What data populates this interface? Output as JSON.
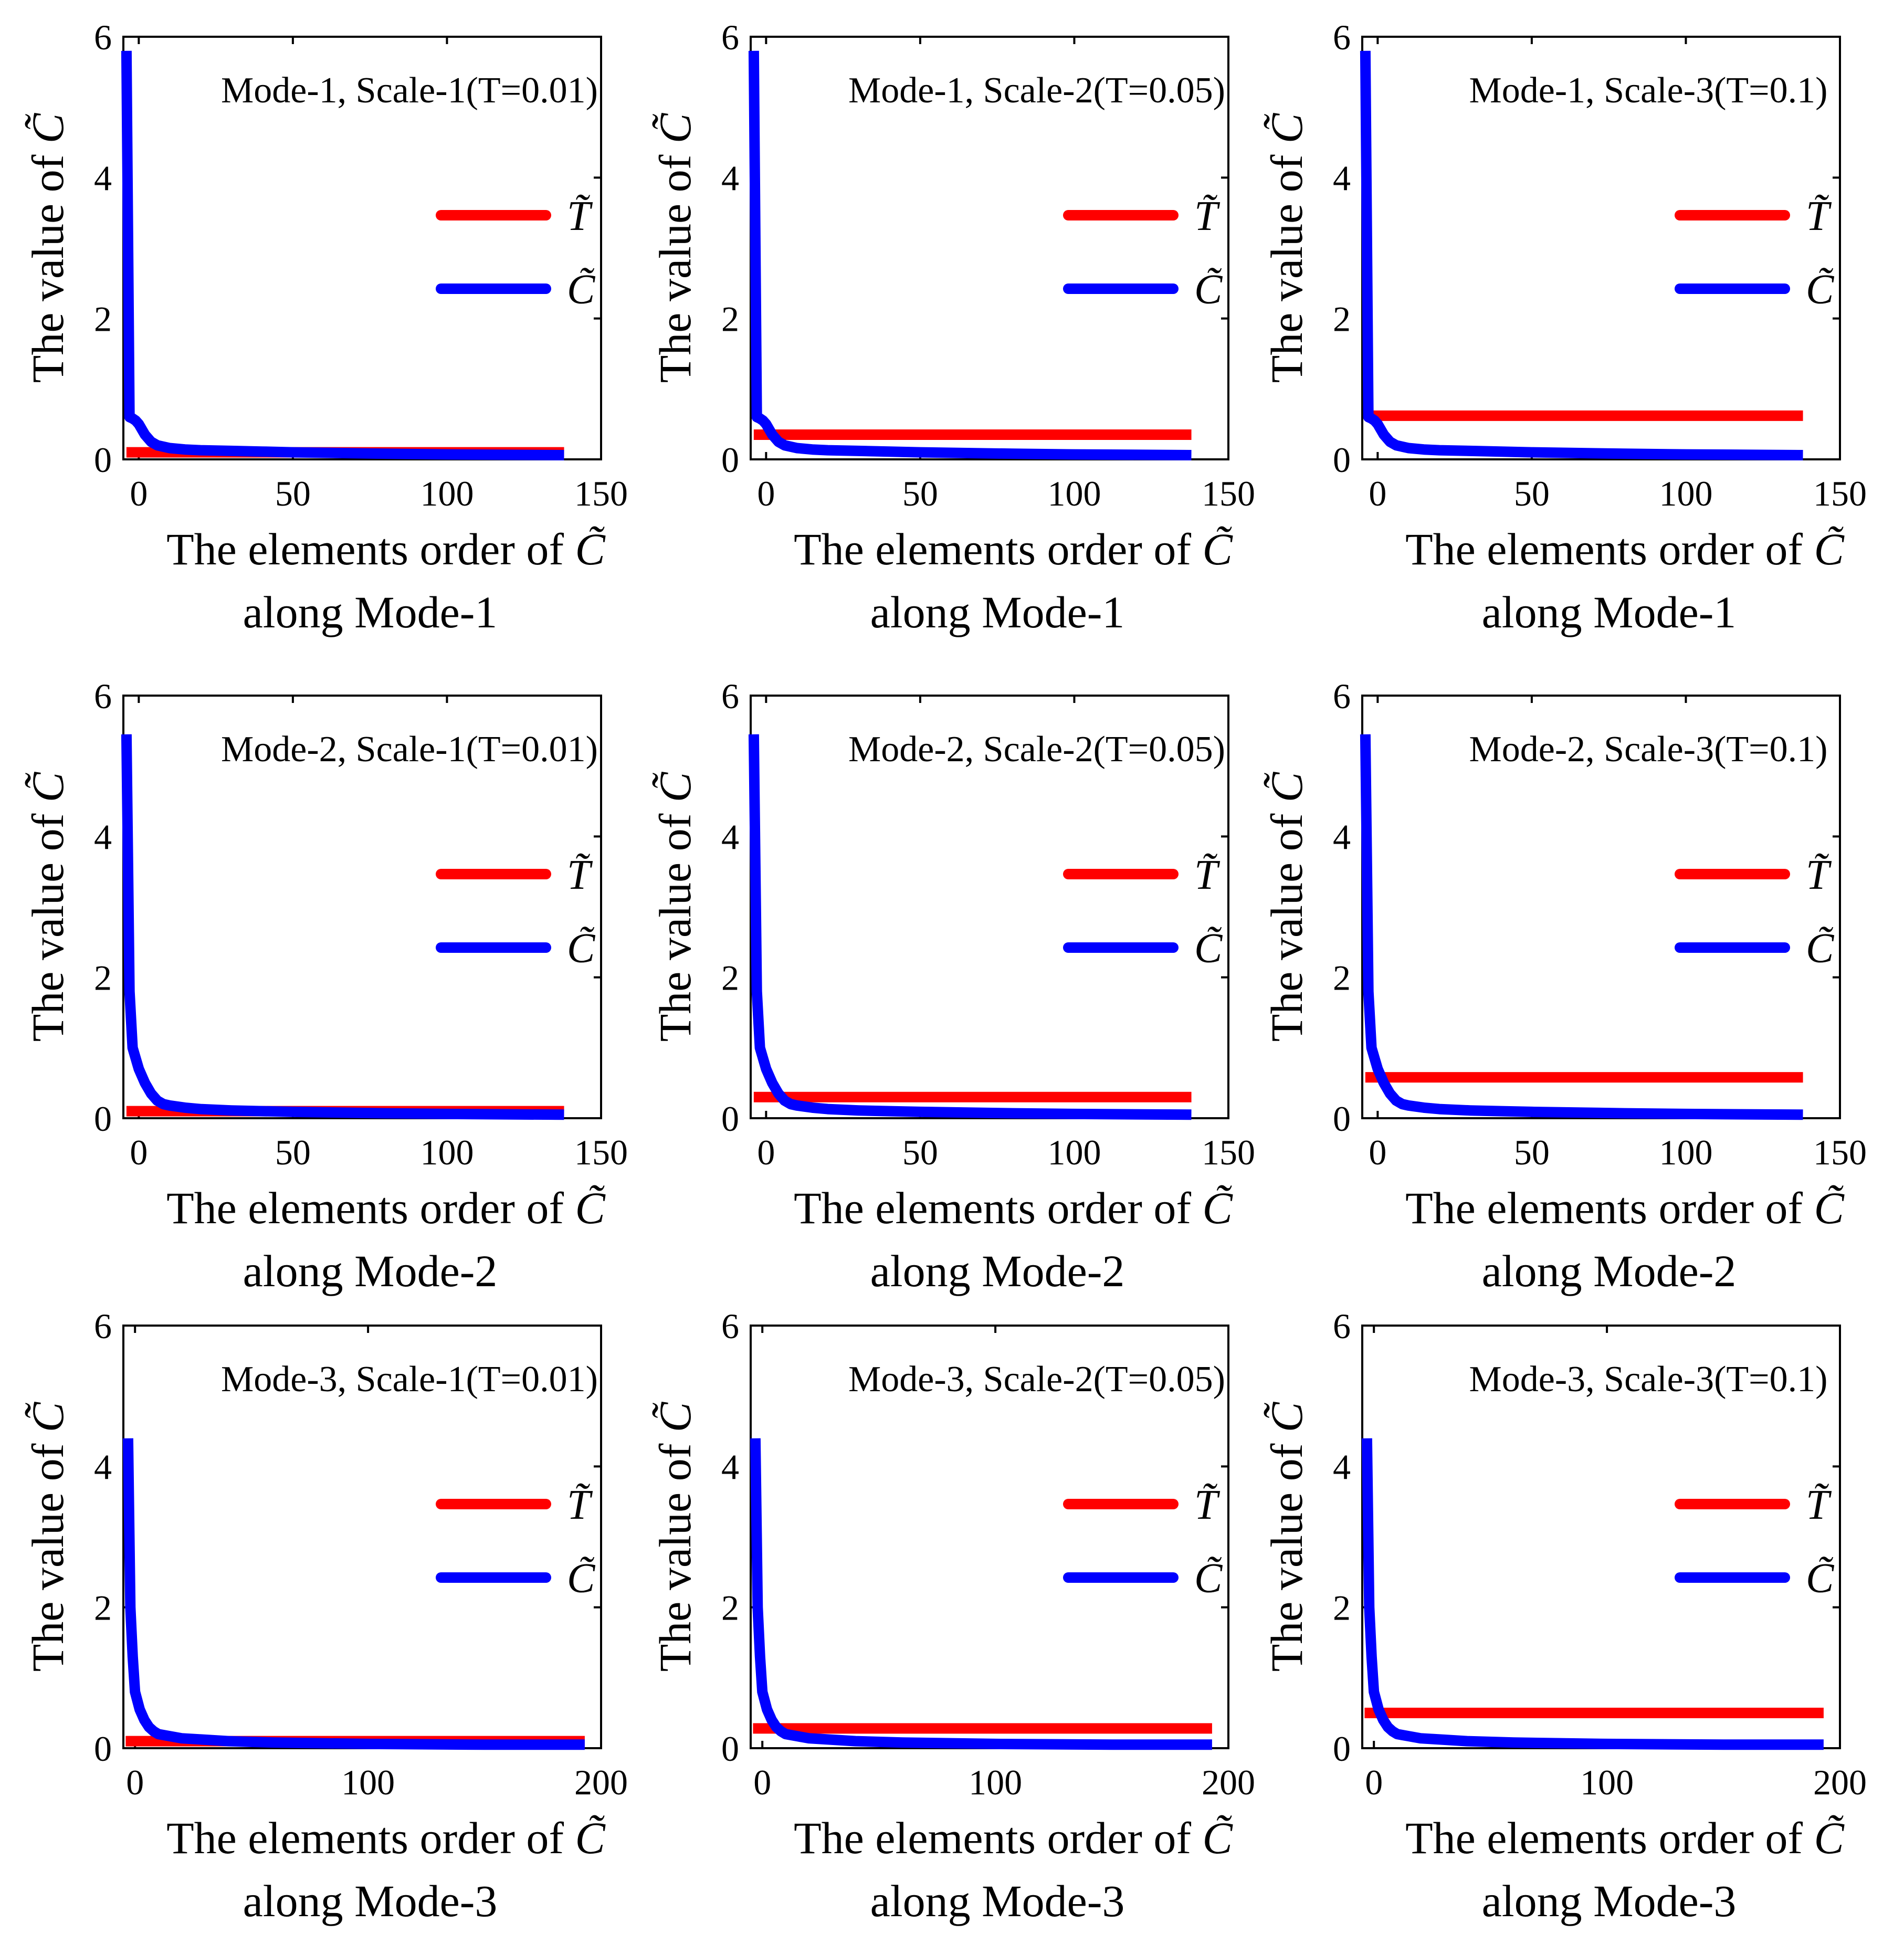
{
  "figure": {
    "series_colors": {
      "threshold": "#ff0000",
      "coefficients": "#0000ff"
    },
    "legend_symbols": {
      "threshold": "T̃",
      "coefficients": "C̃"
    },
    "ylabel": "The value of",
    "ylabel_symbol": "C̃",
    "xlabel_line1": "The elements order of",
    "xlabel_symbol": "C̃"
  },
  "chart_data": [
    {
      "type": "line",
      "title": "Mode-1, Scale-1(T=0.01)",
      "xlabel_line2": "along Mode-1",
      "xlim": [
        -5,
        150
      ],
      "ylim": [
        0,
        6
      ],
      "xticks": [
        0,
        50,
        100,
        150
      ],
      "yticks": [
        0,
        2,
        4,
        6
      ],
      "n_elements": 140,
      "peak": 5.8,
      "threshold": 0.1,
      "curve_x": [
        -4,
        -3,
        -2,
        -1,
        0,
        2,
        4,
        6,
        8,
        10,
        15,
        20,
        30,
        40,
        50,
        80,
        100,
        138
      ],
      "curve_y": [
        5.8,
        0.6,
        0.58,
        0.55,
        0.5,
        0.35,
        0.25,
        0.2,
        0.18,
        0.16,
        0.14,
        0.13,
        0.12,
        0.11,
        0.1,
        0.08,
        0.07,
        0.06
      ],
      "series": [
        {
          "name": "T̃",
          "values": [
            0.1
          ]
        },
        {
          "name": "C̃",
          "values": [
            5.8
          ]
        }
      ]
    },
    {
      "type": "line",
      "title": "Mode-1, Scale-2(T=0.05)",
      "xlabel_line2": "along Mode-1",
      "xlim": [
        -5,
        150
      ],
      "ylim": [
        0,
        6
      ],
      "xticks": [
        0,
        50,
        100,
        150
      ],
      "yticks": [
        0,
        2,
        4,
        6
      ],
      "n_elements": 140,
      "peak": 5.8,
      "threshold": 0.35,
      "curve_x": [
        -4,
        -3,
        -2,
        -1,
        0,
        2,
        4,
        6,
        8,
        10,
        15,
        20,
        30,
        40,
        50,
        80,
        100,
        138
      ],
      "curve_y": [
        5.8,
        0.6,
        0.58,
        0.55,
        0.5,
        0.35,
        0.25,
        0.2,
        0.18,
        0.16,
        0.14,
        0.13,
        0.12,
        0.11,
        0.1,
        0.08,
        0.07,
        0.06
      ],
      "series": [
        {
          "name": "T̃",
          "values": [
            0.35
          ]
        },
        {
          "name": "C̃",
          "values": [
            5.8
          ]
        }
      ]
    },
    {
      "type": "line",
      "title": "Mode-1, Scale-3(T=0.1)",
      "xlabel_line2": "along Mode-1",
      "xlim": [
        -5,
        150
      ],
      "ylim": [
        0,
        6
      ],
      "xticks": [
        0,
        50,
        100,
        150
      ],
      "yticks": [
        0,
        2,
        4,
        6
      ],
      "n_elements": 140,
      "peak": 5.8,
      "threshold": 0.62,
      "curve_x": [
        -4,
        -3,
        -2,
        -1,
        0,
        2,
        4,
        6,
        8,
        10,
        15,
        20,
        30,
        40,
        50,
        80,
        100,
        138
      ],
      "curve_y": [
        5.8,
        0.6,
        0.58,
        0.55,
        0.5,
        0.35,
        0.25,
        0.2,
        0.18,
        0.16,
        0.14,
        0.13,
        0.12,
        0.11,
        0.1,
        0.08,
        0.07,
        0.06
      ],
      "series": [
        {
          "name": "T̃",
          "values": [
            0.62
          ]
        },
        {
          "name": "C̃",
          "values": [
            5.8
          ]
        }
      ]
    },
    {
      "type": "line",
      "title": "Mode-2, Scale-1(T=0.01)",
      "xlabel_line2": "along Mode-2",
      "xlim": [
        -5,
        150
      ],
      "ylim": [
        0,
        6
      ],
      "xticks": [
        0,
        50,
        100,
        150
      ],
      "yticks": [
        0,
        2,
        4,
        6
      ],
      "n_elements": 140,
      "peak": 5.45,
      "threshold": 0.1,
      "curve_x": [
        -4,
        -3,
        -2,
        -1,
        0,
        2,
        4,
        6,
        8,
        10,
        15,
        20,
        30,
        40,
        50,
        80,
        100,
        138
      ],
      "curve_y": [
        5.45,
        1.8,
        1.0,
        0.85,
        0.7,
        0.5,
        0.35,
        0.25,
        0.2,
        0.18,
        0.15,
        0.13,
        0.11,
        0.1,
        0.09,
        0.07,
        0.06,
        0.05
      ],
      "series": [
        {
          "name": "T̃",
          "values": [
            0.1
          ]
        },
        {
          "name": "C̃",
          "values": [
            5.45
          ]
        }
      ]
    },
    {
      "type": "line",
      "title": "Mode-2, Scale-2(T=0.05)",
      "xlabel_line2": "along Mode-2",
      "xlim": [
        -5,
        150
      ],
      "ylim": [
        0,
        6
      ],
      "xticks": [
        0,
        50,
        100,
        150
      ],
      "yticks": [
        0,
        2,
        4,
        6
      ],
      "n_elements": 140,
      "peak": 5.45,
      "threshold": 0.3,
      "curve_x": [
        -4,
        -3,
        -2,
        -1,
        0,
        2,
        4,
        6,
        8,
        10,
        15,
        20,
        30,
        40,
        50,
        80,
        100,
        138
      ],
      "curve_y": [
        5.45,
        1.8,
        1.0,
        0.85,
        0.7,
        0.5,
        0.35,
        0.25,
        0.2,
        0.18,
        0.15,
        0.13,
        0.11,
        0.1,
        0.09,
        0.07,
        0.06,
        0.05
      ],
      "series": [
        {
          "name": "T̃",
          "values": [
            0.3
          ]
        },
        {
          "name": "C̃",
          "values": [
            5.45
          ]
        }
      ]
    },
    {
      "type": "line",
      "title": "Mode-2, Scale-3(T=0.1)",
      "xlabel_line2": "along Mode-2",
      "xlim": [
        -5,
        150
      ],
      "ylim": [
        0,
        6
      ],
      "xticks": [
        0,
        50,
        100,
        150
      ],
      "yticks": [
        0,
        2,
        4,
        6
      ],
      "n_elements": 140,
      "peak": 5.45,
      "threshold": 0.58,
      "curve_x": [
        -4,
        -3,
        -2,
        -1,
        0,
        2,
        4,
        6,
        8,
        10,
        15,
        20,
        30,
        40,
        50,
        80,
        100,
        138
      ],
      "curve_y": [
        5.45,
        1.8,
        1.0,
        0.85,
        0.7,
        0.5,
        0.35,
        0.25,
        0.2,
        0.18,
        0.15,
        0.13,
        0.11,
        0.1,
        0.09,
        0.07,
        0.06,
        0.05
      ],
      "series": [
        {
          "name": "T̃",
          "values": [
            0.58
          ]
        },
        {
          "name": "C̃",
          "values": [
            5.45
          ]
        }
      ]
    },
    {
      "type": "line",
      "title": "Mode-3, Scale-1(T=0.01)",
      "xlabel_line2": "along Mode-3",
      "xlim": [
        -5,
        200
      ],
      "ylim": [
        0,
        6
      ],
      "xticks": [
        0,
        100,
        200
      ],
      "yticks": [
        0,
        2,
        4,
        6
      ],
      "n_elements": 195,
      "peak": 4.4,
      "threshold": 0.1,
      "curve_x": [
        -3,
        -2,
        -1,
        0,
        2,
        4,
        6,
        8,
        10,
        15,
        20,
        30,
        40,
        60,
        100,
        150,
        193
      ],
      "curve_y": [
        4.4,
        2.0,
        1.3,
        0.8,
        0.55,
        0.4,
        0.3,
        0.24,
        0.2,
        0.17,
        0.14,
        0.12,
        0.1,
        0.08,
        0.06,
        0.05,
        0.05
      ],
      "series": [
        {
          "name": "T̃",
          "values": [
            0.1
          ]
        },
        {
          "name": "C̃",
          "values": [
            4.4
          ]
        }
      ]
    },
    {
      "type": "line",
      "title": "Mode-3, Scale-2(T=0.05)",
      "xlabel_line2": "along Mode-3",
      "xlim": [
        -5,
        200
      ],
      "ylim": [
        0,
        6
      ],
      "xticks": [
        0,
        100,
        200
      ],
      "yticks": [
        0,
        2,
        4,
        6
      ],
      "n_elements": 195,
      "peak": 4.4,
      "threshold": 0.28,
      "curve_x": [
        -3,
        -2,
        -1,
        0,
        2,
        4,
        6,
        8,
        10,
        15,
        20,
        30,
        40,
        60,
        100,
        150,
        193
      ],
      "curve_y": [
        4.4,
        2.0,
        1.3,
        0.8,
        0.55,
        0.4,
        0.3,
        0.24,
        0.2,
        0.17,
        0.14,
        0.12,
        0.1,
        0.08,
        0.06,
        0.05,
        0.05
      ],
      "series": [
        {
          "name": "T̃",
          "values": [
            0.28
          ]
        },
        {
          "name": "C̃",
          "values": [
            4.4
          ]
        }
      ]
    },
    {
      "type": "line",
      "title": "Mode-3, Scale-3(T=0.1)",
      "xlabel_line2": "along Mode-3",
      "xlim": [
        -5,
        200
      ],
      "ylim": [
        0,
        6
      ],
      "xticks": [
        0,
        100,
        200
      ],
      "yticks": [
        0,
        2,
        4,
        6
      ],
      "n_elements": 195,
      "peak": 4.4,
      "threshold": 0.5,
      "curve_x": [
        -3,
        -2,
        -1,
        0,
        2,
        4,
        6,
        8,
        10,
        15,
        20,
        30,
        40,
        60,
        100,
        150,
        193
      ],
      "curve_y": [
        4.4,
        2.0,
        1.3,
        0.8,
        0.55,
        0.4,
        0.3,
        0.24,
        0.2,
        0.17,
        0.14,
        0.12,
        0.1,
        0.08,
        0.06,
        0.05,
        0.05
      ],
      "series": [
        {
          "name": "T̃",
          "values": [
            0.5
          ]
        },
        {
          "name": "C̃",
          "values": [
            4.4
          ]
        }
      ]
    }
  ]
}
